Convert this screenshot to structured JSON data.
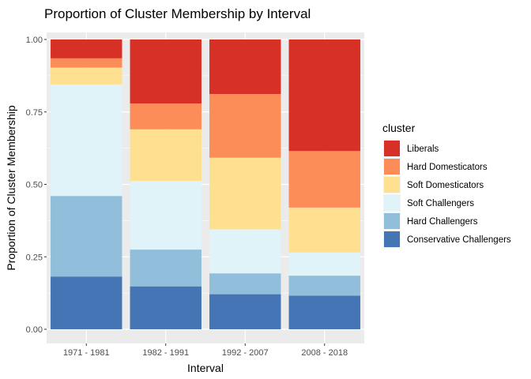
{
  "chart_data": {
    "type": "bar",
    "stacked": true,
    "title": "Proportion of Cluster Membership by Interval",
    "xlabel": "Interval",
    "ylabel": "Proportion of Cluster Membership",
    "ylim": [
      0,
      1
    ],
    "yticks": [
      "0.00",
      "0.25",
      "0.50",
      "0.75",
      "1.00"
    ],
    "ytick_values": [
      0,
      0.25,
      0.5,
      0.75,
      1.0
    ],
    "categories": [
      "1971 - 1981",
      "1982 - 1991",
      "1992 - 2007",
      "2008 - 2018"
    ],
    "legend_title": "cluster",
    "legend_position": "right",
    "grid": true,
    "series": [
      {
        "name": "Conservative Challengers",
        "color": "#4575b4",
        "values": [
          0.182,
          0.148,
          0.121,
          0.116
        ]
      },
      {
        "name": "Hard Challengers",
        "color": "#91bfdb",
        "values": [
          0.278,
          0.127,
          0.072,
          0.069
        ]
      },
      {
        "name": "Soft Challengers",
        "color": "#e0f3f8",
        "values": [
          0.385,
          0.237,
          0.152,
          0.08
        ]
      },
      {
        "name": "Soft Domesticators",
        "color": "#fee090",
        "values": [
          0.058,
          0.178,
          0.247,
          0.155
        ]
      },
      {
        "name": "Hard Domesticators",
        "color": "#fc8d59",
        "values": [
          0.032,
          0.089,
          0.22,
          0.195
        ]
      },
      {
        "name": "Liberals",
        "color": "#d73027",
        "values": [
          0.065,
          0.221,
          0.188,
          0.385
        ]
      }
    ]
  }
}
